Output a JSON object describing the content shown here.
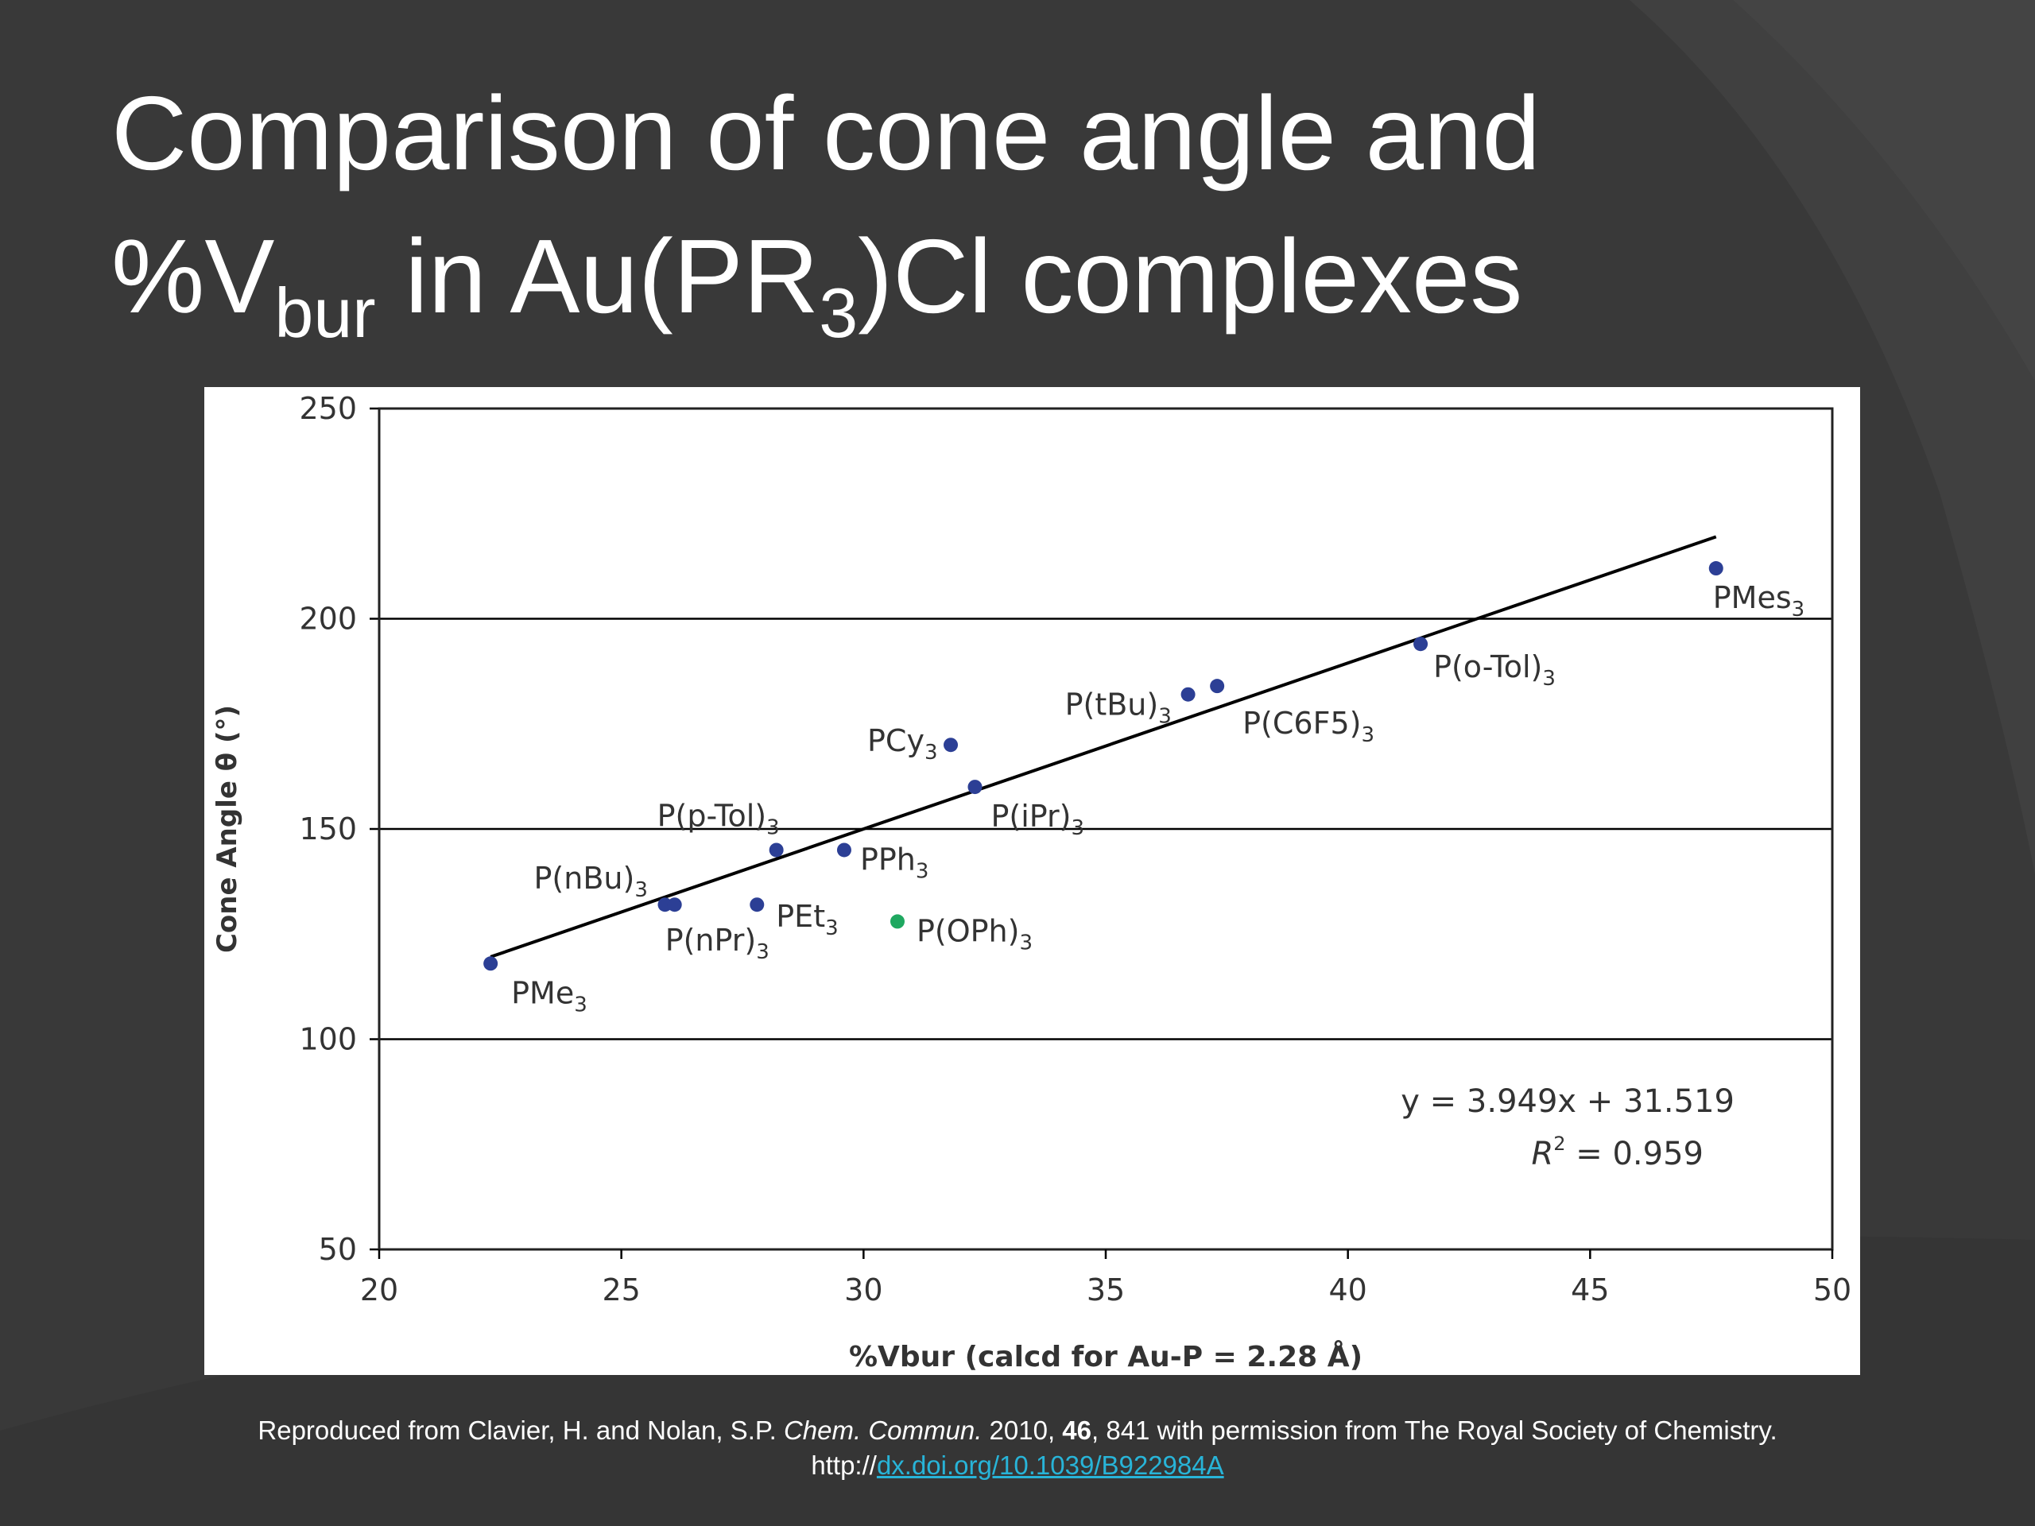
{
  "title": {
    "line1": "Comparison of cone angle and",
    "line2_prefix": "%V",
    "line2_sub1": "bur",
    "line2_mid": " in Au(PR",
    "line2_sub2": "3",
    "line2_suffix": ")Cl complexes"
  },
  "caption": {
    "text1": "Reproduced from Clavier, H. and Nolan, S.P. ",
    "journal": "Chem. Commun.",
    "year": " 2010, ",
    "volume": "46",
    "rest": ", 841 with permission from The Royal Society of Chemistry.",
    "url_prefix": "http://",
    "url_link": "dx.doi.org/10.1039/B922984A"
  },
  "chart_data": {
    "type": "scatter",
    "xlabel": "%Vbur (calcd for Au-P = 2.28 Å)",
    "ylabel": "Cone Angle θ (°)",
    "xlim": [
      20,
      50
    ],
    "ylim": [
      50,
      250
    ],
    "xticks": [
      "20",
      "25",
      "30",
      "35",
      "40",
      "45",
      "50"
    ],
    "yticks": [
      "50",
      "100",
      "150",
      "200",
      "250"
    ],
    "grid": "horizontal",
    "colors": {
      "point": "#2c3f95",
      "highlight": "#1fa860",
      "line": "#000000",
      "grid": "#000000"
    },
    "points": [
      {
        "label": "PMe",
        "sub": "3",
        "x": 22.3,
        "y": 118,
        "color": "#2c3f95"
      },
      {
        "label": "P(nBu)",
        "sub": "3",
        "x": 25.9,
        "y": 132,
        "color": "#2c3f95"
      },
      {
        "label": "P(nPr)",
        "sub": "3",
        "x": 26.1,
        "y": 132,
        "color": "#2c3f95"
      },
      {
        "label": "PEt",
        "sub": "3",
        "x": 27.8,
        "y": 132,
        "color": "#2c3f95"
      },
      {
        "label": "P(p-Tol)",
        "sub": "3",
        "x": 28.2,
        "y": 145,
        "color": "#2c3f95"
      },
      {
        "label": "PPh",
        "sub": "3",
        "x": 29.6,
        "y": 145,
        "color": "#2c3f95"
      },
      {
        "label": "P(OPh)",
        "sub": "3",
        "x": 30.7,
        "y": 128,
        "color": "#1fa860"
      },
      {
        "label": "PCy",
        "sub": "3",
        "x": 31.8,
        "y": 170,
        "color": "#2c3f95"
      },
      {
        "label": "P(iPr)",
        "sub": "3",
        "x": 32.3,
        "y": 160,
        "color": "#2c3f95"
      },
      {
        "label": "P(tBu)",
        "sub": "3",
        "x": 36.7,
        "y": 182,
        "color": "#2c3f95"
      },
      {
        "label": "P(C6F5)",
        "sub": "3",
        "x": 37.3,
        "y": 184,
        "color": "#2c3f95"
      },
      {
        "label": "P(o-Tol)",
        "sub": "3",
        "x": 41.5,
        "y": 194,
        "color": "#2c3f95"
      },
      {
        "label": "PMes",
        "sub": "3",
        "x": 47.6,
        "y": 212,
        "color": "#2c3f95"
      }
    ],
    "fit": {
      "slope": 3.949,
      "intercept": 31.519,
      "x_range": [
        22.3,
        47.6
      ]
    },
    "annotation": {
      "equation": "y = 3.949x + 31.519",
      "r2_text": "= 0.959"
    }
  }
}
